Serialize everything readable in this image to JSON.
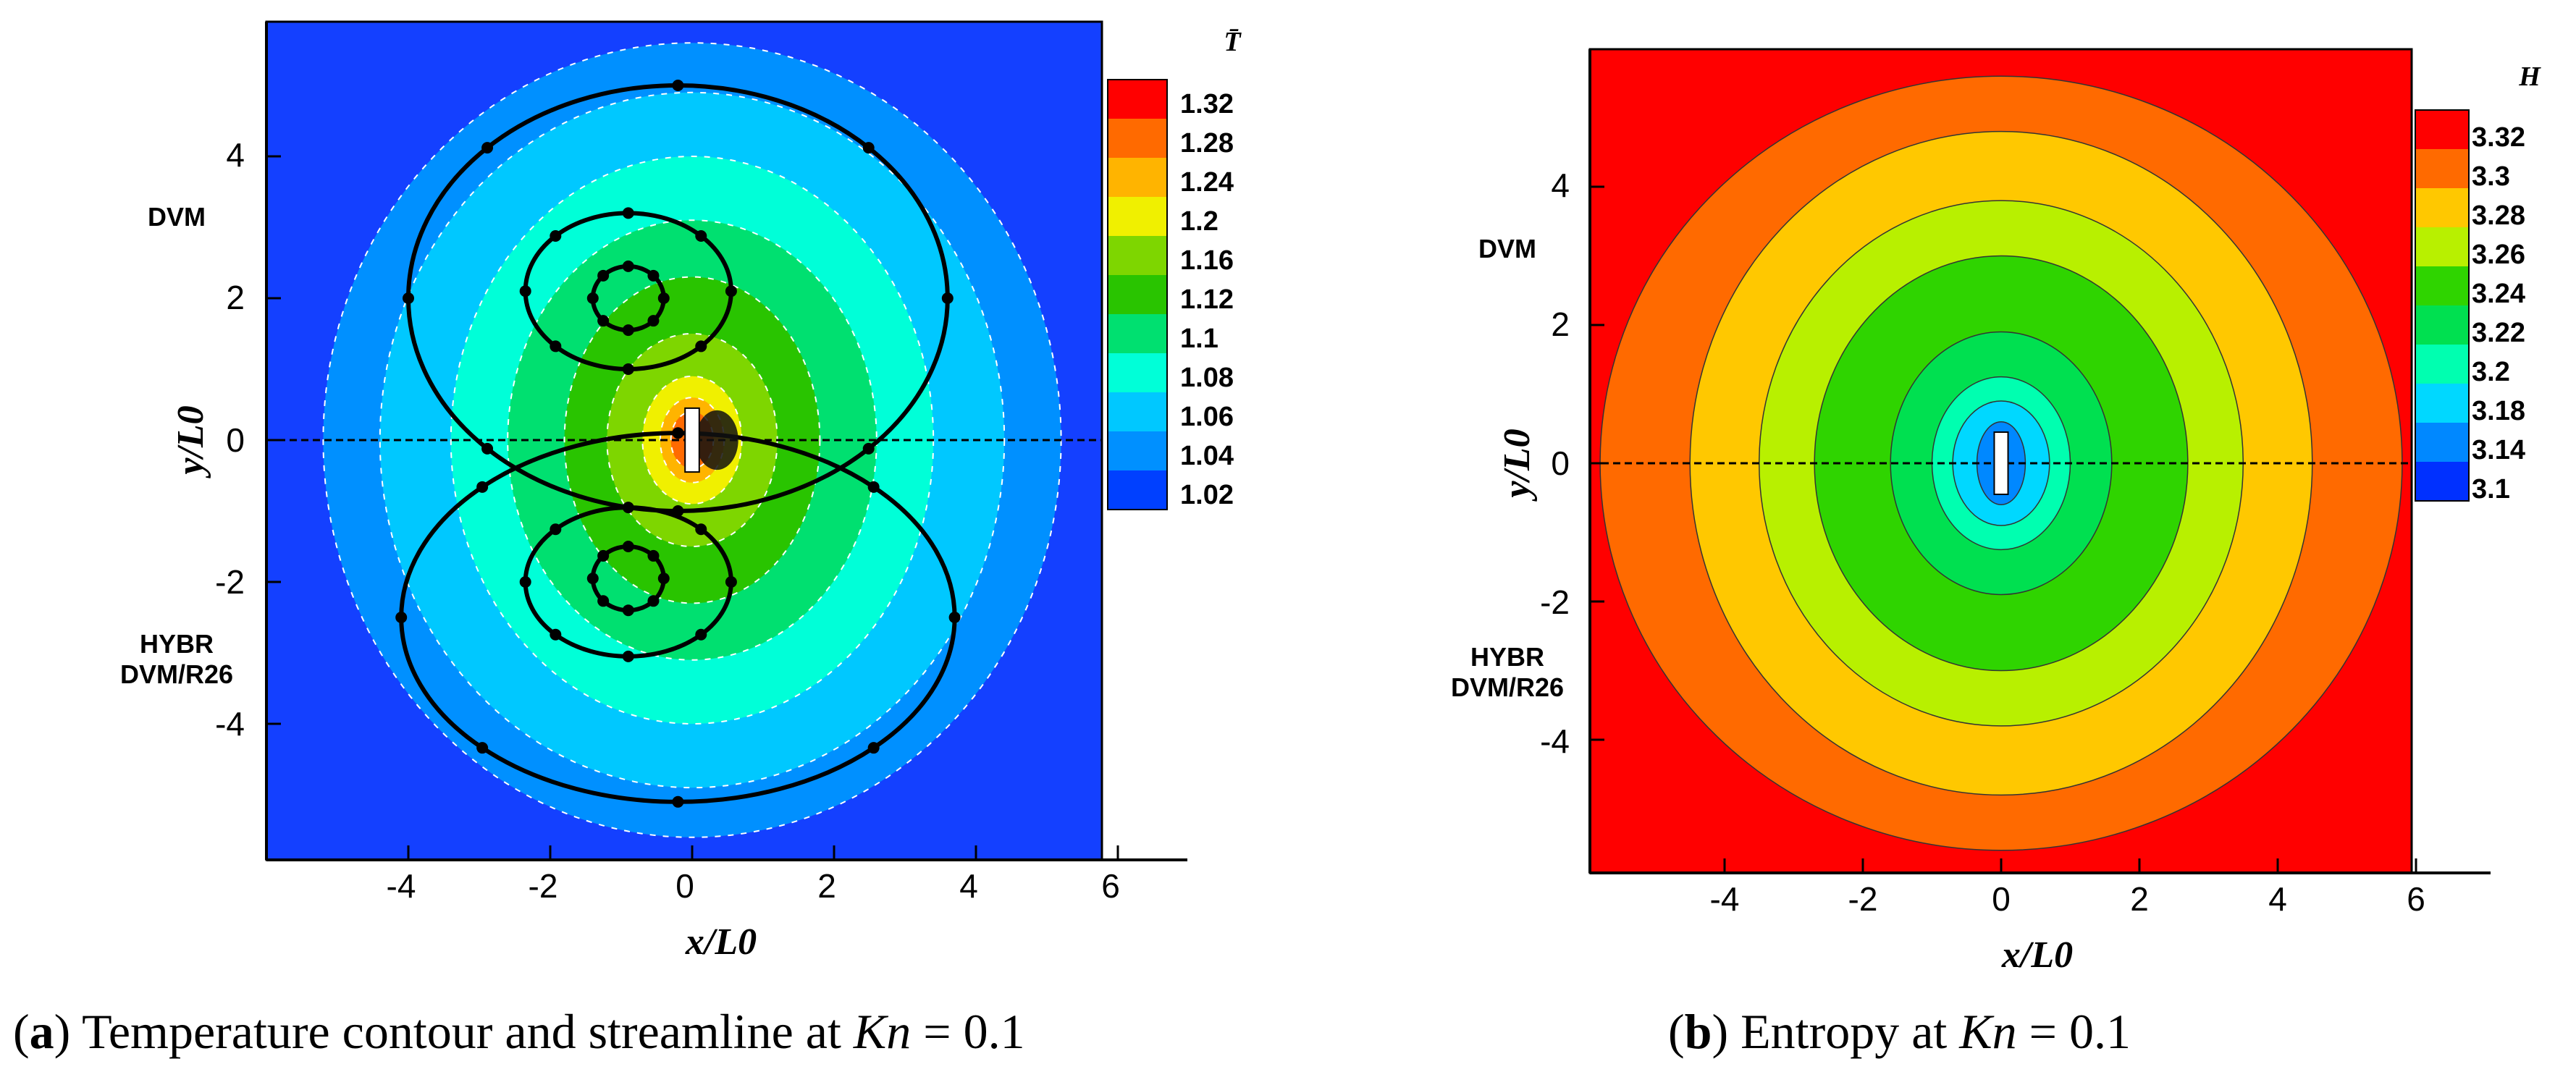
{
  "chart_data": [
    {
      "type": "heatmap",
      "panel": "a",
      "caption": {
        "tag": "a",
        "prefix": "Temperature contour and streamline at ",
        "symbol": "Kn",
        "suffix": " = 0.1"
      },
      "xlabel": "x/L0",
      "ylabel": "y/L0",
      "xlim": [
        -6,
        7
      ],
      "ylim": [
        -6,
        6
      ],
      "xticks": [
        "-4",
        "-2",
        "0",
        "2",
        "4",
        "6"
      ],
      "yticks": [
        "-4",
        "-2",
        "0",
        "2",
        "4"
      ],
      "region_labels": {
        "upper": [
          "DVM"
        ],
        "lower": [
          "HYBR",
          "DVM/R26"
        ]
      },
      "colorbar": {
        "title": "T̄",
        "levels": [
          "1.32",
          "1.28",
          "1.24",
          "1.2",
          "1.16",
          "1.12",
          "1.1",
          "1.08",
          "1.06",
          "1.04",
          "1.02"
        ],
        "colors": [
          "#ff0000",
          "#ff6a00",
          "#ffb400",
          "#f0f000",
          "#7ed600",
          "#29c400",
          "#00e070",
          "#00ffd8",
          "#00c8ff",
          "#0090ff",
          "#0040ff"
        ],
        "background": "#1440ff"
      },
      "contour_rings": [
        {
          "rx": 5.2,
          "ry": 5.6,
          "color": "#0090ff"
        },
        {
          "rx": 4.4,
          "ry": 4.9,
          "color": "#00c8ff"
        },
        {
          "rx": 3.4,
          "ry": 4.0,
          "color": "#00ffd8"
        },
        {
          "rx": 2.6,
          "ry": 3.1,
          "color": "#00e070"
        },
        {
          "rx": 1.8,
          "ry": 2.3,
          "color": "#29c400"
        },
        {
          "rx": 1.2,
          "ry": 1.5,
          "color": "#7ed600"
        },
        {
          "rx": 0.7,
          "ry": 0.9,
          "color": "#f0f000"
        },
        {
          "rx": 0.45,
          "ry": 0.6,
          "color": "#ffb400"
        },
        {
          "rx": 0.3,
          "ry": 0.4,
          "color": "#ff6a00"
        }
      ],
      "body": {
        "x": [
          -0.1,
          0.1
        ],
        "y": [
          -0.45,
          0.45
        ]
      },
      "streamlines": [
        {
          "cx": -0.2,
          "cy": 2.0,
          "rx": 3.8,
          "ry": 3.0
        },
        {
          "cx": -0.9,
          "cy": 2.1,
          "rx": 1.45,
          "ry": 1.1
        },
        {
          "cx": -0.9,
          "cy": 2.0,
          "rx": 0.5,
          "ry": 0.45
        },
        {
          "cx": -0.2,
          "cy": -2.5,
          "rx": 3.9,
          "ry": 2.6
        },
        {
          "cx": -0.9,
          "cy": -2.0,
          "rx": 1.45,
          "ry": 1.05
        },
        {
          "cx": -0.9,
          "cy": -1.95,
          "rx": 0.5,
          "ry": 0.45
        }
      ]
    },
    {
      "type": "heatmap",
      "panel": "b",
      "caption": {
        "tag": "b",
        "prefix": "Entropy at ",
        "symbol": "Kn",
        "suffix": " = 0.1"
      },
      "xlabel": "x/L0",
      "ylabel": "y/L0",
      "xlim": [
        -6,
        7
      ],
      "ylim": [
        -6,
        6
      ],
      "xticks": [
        "-4",
        "-2",
        "0",
        "2",
        "4",
        "6"
      ],
      "yticks": [
        "-4",
        "-2",
        "0",
        "2",
        "4"
      ],
      "region_labels": {
        "upper": [
          "DVM"
        ],
        "lower": [
          "HYBR",
          "DVM/R26"
        ]
      },
      "colorbar": {
        "title": "H",
        "levels": [
          "3.32",
          "3.3",
          "3.28",
          "3.26",
          "3.24",
          "3.22",
          "3.2",
          "3.18",
          "3.14",
          "3.1"
        ],
        "colors": [
          "#ff0000",
          "#ff6a00",
          "#ffc800",
          "#b8f000",
          "#2fd400",
          "#00e050",
          "#00ffb0",
          "#00d8ff",
          "#0088ff",
          "#0030ff"
        ],
        "background": "#ff0000"
      },
      "contour_rings": [
        {
          "rx": 5.8,
          "ry": 5.6,
          "color": "#ff6a00"
        },
        {
          "rx": 4.5,
          "ry": 4.8,
          "color": "#ffc800"
        },
        {
          "rx": 3.5,
          "ry": 3.8,
          "color": "#b8f000"
        },
        {
          "rx": 2.7,
          "ry": 3.0,
          "color": "#2fd400"
        },
        {
          "rx": 1.6,
          "ry": 1.9,
          "color": "#00e050"
        },
        {
          "rx": 1.0,
          "ry": 1.25,
          "color": "#00ffb0"
        },
        {
          "rx": 0.7,
          "ry": 0.9,
          "color": "#00d8ff"
        },
        {
          "rx": 0.35,
          "ry": 0.6,
          "color": "#0088ff"
        }
      ],
      "body": {
        "x": [
          -0.1,
          0.1
        ],
        "y": [
          -0.45,
          0.45
        ]
      }
    }
  ]
}
